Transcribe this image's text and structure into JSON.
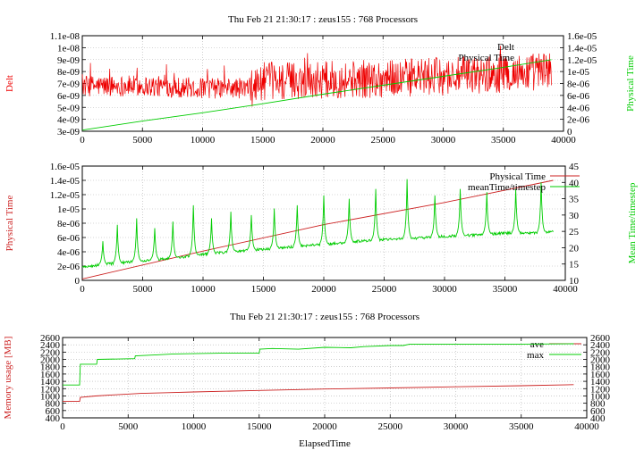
{
  "chart_data": [
    {
      "type": "line",
      "title": "Thu Feb 21 21:30:17 : zeus155 : 768 Processors",
      "xlabel": "",
      "ylabel": "Delt",
      "y2label": "Physical Time",
      "xlim": [
        0,
        40000
      ],
      "ylim": [
        3e-09,
        1.1e-08
      ],
      "y2lim": [
        0,
        1.6e-05
      ],
      "x_ticks": [
        "0",
        "5000",
        "10000",
        "15000",
        "20000",
        "25000",
        "30000",
        "35000",
        "40000"
      ],
      "y_ticks": [
        "3e-09",
        "4e-09",
        "5e-09",
        "6e-09",
        "7e-09",
        "8e-09",
        "9e-09",
        "1e-08",
        "1.1e-08"
      ],
      "y2_ticks": [
        "0",
        "2e-06",
        "4e-06",
        "6e-06",
        "8e-06",
        "1e-05",
        "1.2e-05",
        "1.4e-05",
        "1.6e-05"
      ],
      "grid": true,
      "legend": "top-right",
      "series": [
        {
          "name": "Delt",
          "axis": "left",
          "color": "#ee0000",
          "style": "noisy",
          "x": [
            0,
            5000,
            10000,
            14000,
            15000,
            20000,
            25000,
            30000,
            35000,
            39000
          ],
          "y": [
            6.8e-09,
            6.8e-09,
            6.6e-09,
            6.6e-09,
            7.2e-09,
            7.3e-09,
            7.4e-09,
            7.6e-09,
            7.8e-09,
            8.1e-09
          ]
        },
        {
          "name": "Physical Time",
          "axis": "right",
          "color": "#00cc00",
          "x": [
            0,
            5000,
            10000,
            15000,
            20000,
            25000,
            30000,
            35000,
            39000
          ],
          "y": [
            2e-07,
            1.7e-06,
            3.1e-06,
            4.6e-06,
            6.2e-06,
            7.7e-06,
            9.2e-06,
            1.07e-05,
            1.2e-05
          ]
        }
      ]
    },
    {
      "type": "line",
      "title": "",
      "xlabel": "",
      "ylabel": "Physical Time",
      "y2label": "Mean Time/timestep",
      "xlim": [
        0,
        40000
      ],
      "ylim": [
        0,
        1.6e-05
      ],
      "y2lim": [
        10,
        45
      ],
      "x_ticks": [
        "0",
        "5000",
        "10000",
        "15000",
        "20000",
        "25000",
        "30000",
        "35000",
        "40000"
      ],
      "y_ticks": [
        "0",
        "2e-06",
        "4e-06",
        "6e-06",
        "8e-06",
        "1e-05",
        "1.2e-05",
        "1.4e-05",
        "1.6e-05"
      ],
      "y2_ticks": [
        "10",
        "15",
        "20",
        "25",
        "30",
        "35",
        "40",
        "45"
      ],
      "grid": true,
      "legend": "top-right",
      "series": [
        {
          "name": "Physical Time",
          "axis": "left",
          "color": "#cc2222",
          "x": [
            0,
            10000,
            20000,
            30000,
            39000
          ],
          "y": [
            2e-07,
            4.1e-06,
            7.8e-06,
            1.09e-05,
            1.4e-05
          ]
        },
        {
          "name": "meanTime/timestep",
          "axis": "right",
          "color": "#00cc00",
          "style": "spiky",
          "baseline_x": [
            0,
            2000,
            5000,
            8000,
            10000,
            13000,
            15000,
            18000,
            20000,
            23000,
            25000,
            28000,
            30000,
            33000,
            35000,
            38000,
            39000
          ],
          "baseline_y": [
            14,
            15,
            16,
            17,
            18,
            19,
            19.5,
            20.5,
            21,
            22,
            22.5,
            23,
            23.5,
            24,
            24.5,
            24.5,
            25
          ],
          "spike_x": [
            1700,
            2900,
            4500,
            6000,
            7500,
            9200,
            10700,
            12300,
            14000,
            15900,
            17800,
            20000,
            22100,
            24300,
            26900,
            29200,
            31300,
            33500,
            35900,
            38000
          ],
          "spike_y": [
            22,
            27,
            29,
            26,
            28,
            33,
            29,
            31,
            30,
            32,
            33,
            36,
            35,
            38,
            41,
            36,
            38,
            37,
            38,
            40
          ]
        }
      ]
    },
    {
      "type": "line",
      "title": "Thu Feb 21 21:30:17 : zeus155 : 768 Processors",
      "xlabel": "ElapsedTime",
      "ylabel": "Memory usage [MB]",
      "xlim": [
        0,
        40000
      ],
      "ylim": [
        400,
        2600
      ],
      "y2lim": [
        400,
        2600
      ],
      "x_ticks": [
        "0",
        "5000",
        "10000",
        "15000",
        "20000",
        "25000",
        "30000",
        "35000",
        "40000"
      ],
      "y_ticks": [
        "400",
        "600",
        "800",
        "1000",
        "1200",
        "1400",
        "1600",
        "1800",
        "2000",
        "2200",
        "2400",
        "2600"
      ],
      "y2_ticks": [
        "400",
        "600",
        "800",
        "1000",
        "1200",
        "1400",
        "1600",
        "1800",
        "2000",
        "2200",
        "2400",
        "2600"
      ],
      "grid": true,
      "legend": "top-right",
      "series": [
        {
          "name": "ave",
          "color": "#cc2222",
          "x": [
            0,
            1300,
            1350,
            2500,
            4000,
            6000,
            8000,
            10000,
            15000,
            20000,
            25000,
            30000,
            35000,
            39000
          ],
          "y": [
            850,
            850,
            960,
            1000,
            1030,
            1070,
            1090,
            1110,
            1150,
            1190,
            1220,
            1250,
            1280,
            1310
          ]
        },
        {
          "name": "max",
          "color": "#00cc00",
          "x": [
            0,
            1300,
            1350,
            2600,
            2650,
            5500,
            5550,
            7000,
            8500,
            12000,
            15000,
            15050,
            16000,
            18000,
            20000,
            22000,
            23000,
            25000,
            26000,
            26500,
            30000,
            35000,
            39000
          ],
          "y": [
            1300,
            1300,
            1870,
            1870,
            2000,
            2020,
            2100,
            2120,
            2150,
            2170,
            2170,
            2280,
            2300,
            2280,
            2330,
            2320,
            2350,
            2380,
            2380,
            2420,
            2420,
            2420,
            2430
          ]
        }
      ]
    }
  ]
}
